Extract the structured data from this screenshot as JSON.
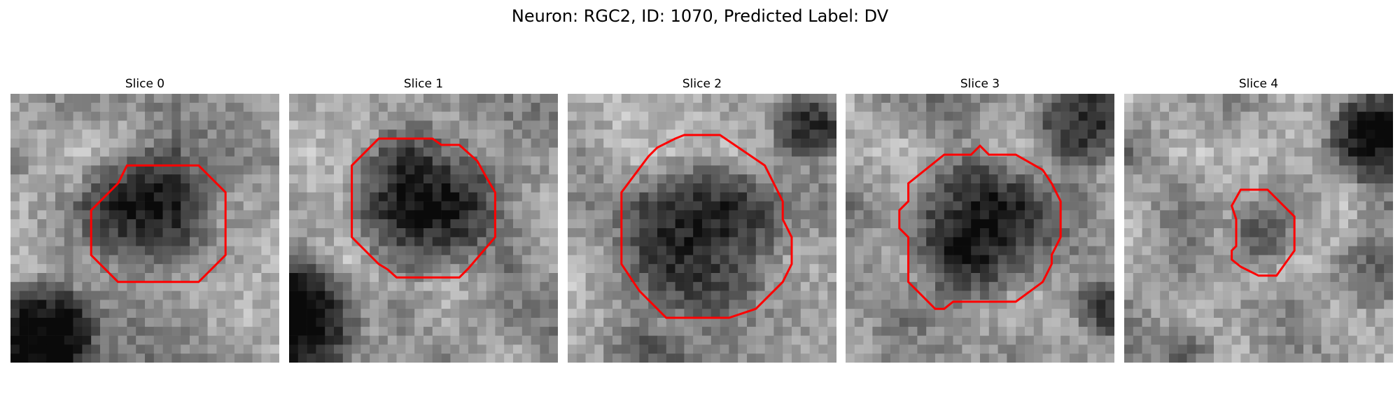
{
  "figure": {
    "title": "Neuron: RGC2, ID: 1070, Predicted Label: DV"
  },
  "panels": [
    {
      "title": "Slice 0"
    },
    {
      "title": "Slice 1"
    },
    {
      "title": "Slice 2"
    },
    {
      "title": "Slice 3"
    },
    {
      "title": "Slice 4"
    }
  ],
  "colors": {
    "outline": "#ff0000",
    "cell_interior": "#3e3e3e",
    "background_light": "#b8b8b8",
    "background_dark": "#222222"
  }
}
